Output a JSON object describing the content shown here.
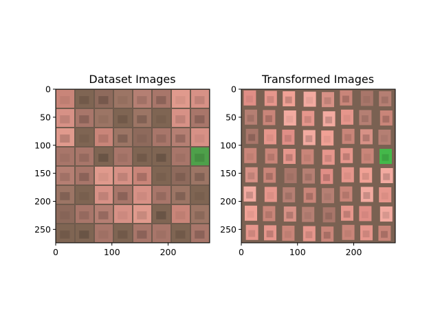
{
  "chart_data": [
    {
      "type": "heatmap",
      "title": "Dataset Images",
      "xlabel": "",
      "ylabel": "",
      "xlim": [
        0,
        274
      ],
      "ylim": [
        274,
        0
      ],
      "xticks": [
        0,
        100,
        200
      ],
      "yticks": [
        0,
        50,
        100,
        150,
        200,
        250
      ],
      "grid": false,
      "grid_layout": {
        "rows": 8,
        "cols": 8
      },
      "tile_palette": [
        "#c98579",
        "#a8766a",
        "#8e6a5c",
        "#d79186",
        "#b57f73",
        "#7f6553",
        "#e09a8d",
        "#9c7565"
      ],
      "special_tiles": [
        {
          "row": 3,
          "col": 7,
          "color": "#4ea04a"
        }
      ]
    },
    {
      "type": "heatmap",
      "title": "Transformed Images",
      "xlabel": "",
      "ylabel": "",
      "xlim": [
        0,
        274
      ],
      "ylim": [
        274,
        0
      ],
      "xticks": [
        0,
        100,
        200
      ],
      "yticks": [
        0,
        50,
        100,
        150,
        200,
        250
      ],
      "grid": false,
      "grid_layout": {
        "rows": 8,
        "cols": 8
      },
      "tile_palette": [
        "#e08e86",
        "#c98579",
        "#f0a195",
        "#b57f73",
        "#d79186",
        "#e6968c",
        "#a8766a",
        "#f2aaa0"
      ],
      "special_tiles": [
        {
          "row": 3,
          "col": 7,
          "color": "#44b84a"
        }
      ]
    }
  ]
}
